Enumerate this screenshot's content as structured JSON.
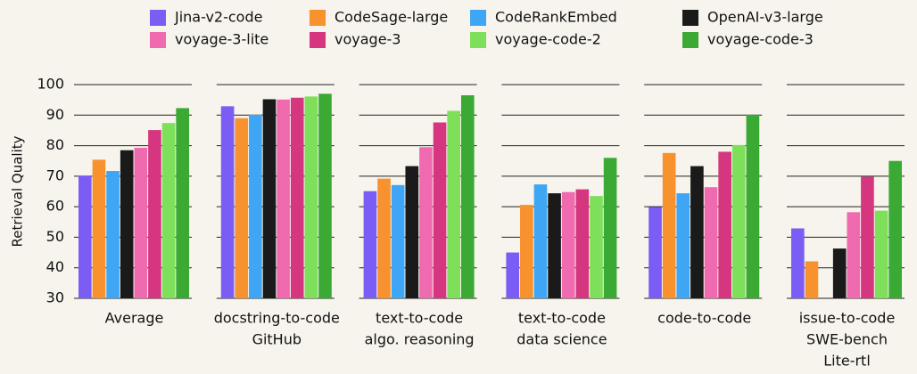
{
  "chart_data": {
    "type": "bar",
    "y_label": "Retrieval Quality",
    "categories": [
      [
        "Average"
      ],
      [
        "docstring-to-code",
        "GitHub"
      ],
      [
        "text-to-code",
        "algo. reasoning"
      ],
      [
        "text-to-code",
        "data science"
      ],
      [
        "code-to-code"
      ],
      [
        "issue-to-code",
        "SWE-bench",
        "Lite-rtl"
      ]
    ],
    "series": [
      {
        "name": "Jina-v2-code",
        "color": "#7b5cf5",
        "values": [
          70.2,
          92.9,
          65.1,
          45.0,
          59.9,
          52.9
        ]
      },
      {
        "name": "CodeSage-large",
        "color": "#f7922f",
        "values": [
          75.4,
          89.0,
          69.2,
          60.6,
          77.6,
          42.1
        ]
      },
      {
        "name": "CodeRankEmbed",
        "color": "#3ea6f5",
        "values": [
          71.7,
          90.1,
          67.1,
          67.3,
          64.4,
          null
        ]
      },
      {
        "name": "OpenAI-v3-large",
        "color": "#1a1a1a",
        "values": [
          78.5,
          95.2,
          73.3,
          64.4,
          73.3,
          46.3
        ]
      },
      {
        "name": "voyage-3-lite",
        "color": "#f06ab0",
        "values": [
          79.3,
          95.1,
          79.5,
          64.8,
          66.4,
          58.2
        ]
      },
      {
        "name": "voyage-3",
        "color": "#d6367f",
        "values": [
          85.1,
          95.7,
          87.6,
          65.7,
          78.0,
          69.8
        ]
      },
      {
        "name": "voyage-code-2",
        "color": "#7ee05a",
        "values": [
          87.4,
          96.1,
          91.4,
          63.5,
          80.2,
          58.7
        ]
      },
      {
        "name": "voyage-code-3",
        "color": "#3aaa35",
        "values": [
          92.3,
          97.0,
          96.5,
          76.0,
          90.1,
          75.0
        ]
      }
    ],
    "ylim": [
      30,
      100
    ],
    "yticks": [
      30,
      40,
      50,
      60,
      70,
      80,
      90,
      100
    ],
    "grid": true
  }
}
